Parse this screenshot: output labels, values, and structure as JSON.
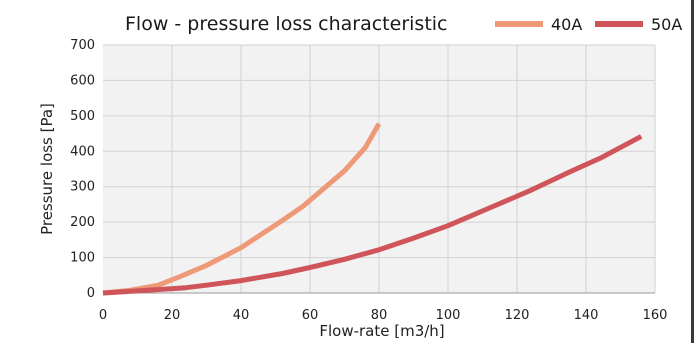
{
  "chart_data": {
    "type": "line",
    "title": "Flow - pressure loss characteristic",
    "xlabel": "Flow-rate [m3/h]",
    "ylabel": "Pressure loss [Pa]",
    "xlim": [
      0,
      160
    ],
    "ylim": [
      0,
      700
    ],
    "xticks": [
      0,
      20,
      40,
      60,
      80,
      100,
      120,
      140,
      160
    ],
    "yticks": [
      0,
      100,
      200,
      300,
      400,
      500,
      600,
      700
    ],
    "grid": true,
    "legend_position": "top-right",
    "series": [
      {
        "name": "40A",
        "color": "#ee9a78",
        "points": [
          [
            0,
            0
          ],
          [
            8,
            8
          ],
          [
            16,
            22
          ],
          [
            22,
            45
          ],
          [
            30,
            78
          ],
          [
            40,
            128
          ],
          [
            45,
            160
          ],
          [
            52,
            205
          ],
          [
            58,
            245
          ],
          [
            64,
            295
          ],
          [
            70,
            345
          ],
          [
            76,
            410
          ],
          [
            80,
            478
          ]
        ]
      },
      {
        "name": "50A",
        "color": "#d0555a",
        "points": [
          [
            0,
            0
          ],
          [
            10,
            6
          ],
          [
            24,
            15
          ],
          [
            30,
            22
          ],
          [
            40,
            35
          ],
          [
            52,
            55
          ],
          [
            60,
            72
          ],
          [
            70,
            95
          ],
          [
            80,
            122
          ],
          [
            90,
            155
          ],
          [
            100,
            190
          ],
          [
            112,
            240
          ],
          [
            124,
            290
          ],
          [
            136,
            345
          ],
          [
            144,
            380
          ],
          [
            156,
            442
          ]
        ]
      }
    ]
  }
}
